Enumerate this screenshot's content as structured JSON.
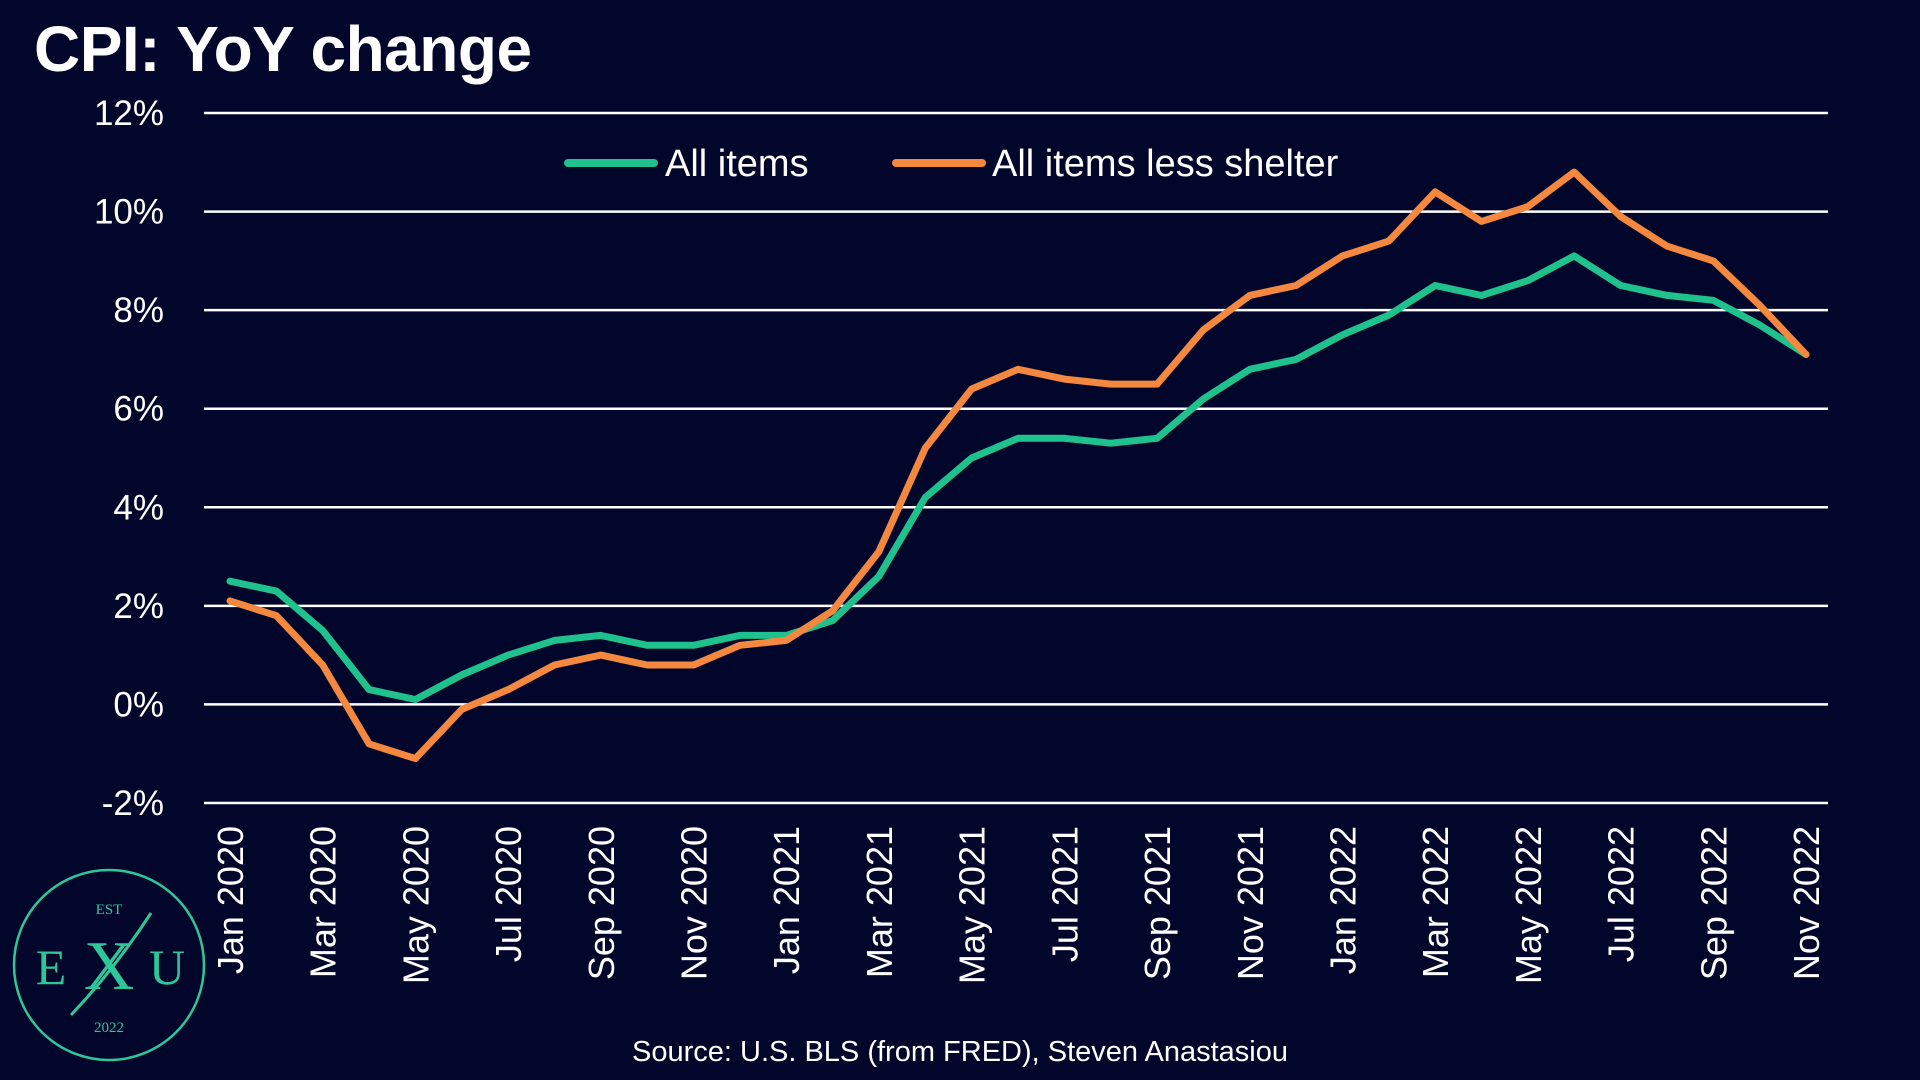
{
  "title": "CPI: YoY change",
  "source": "Source: U.S. BLS (from FRED), Steven Anastasiou",
  "logo": {
    "top": "EST",
    "left": "E",
    "center": "X",
    "right": "U",
    "bottom": "2022",
    "color": "#2ec79a"
  },
  "chart_data": {
    "type": "line",
    "title": "CPI: YoY change",
    "xlabel": "",
    "ylabel": "",
    "ylim": [
      -2,
      12
    ],
    "yticks": [
      -2,
      0,
      2,
      4,
      6,
      8,
      10,
      12
    ],
    "ytick_labels": [
      "-2%",
      "0%",
      "2%",
      "4%",
      "6%",
      "8%",
      "10%",
      "12%"
    ],
    "y_unit": "%",
    "grid": "horizontal",
    "legend_position": "top-center",
    "x": [
      "Jan 2020",
      "Feb 2020",
      "Mar 2020",
      "Apr 2020",
      "May 2020",
      "Jun 2020",
      "Jul 2020",
      "Aug 2020",
      "Sep 2020",
      "Oct 2020",
      "Nov 2020",
      "Dec 2020",
      "Jan 2021",
      "Feb 2021",
      "Mar 2021",
      "Apr 2021",
      "May 2021",
      "Jun 2021",
      "Jul 2021",
      "Aug 2021",
      "Sep 2021",
      "Oct 2021",
      "Nov 2021",
      "Dec 2021",
      "Jan 2022",
      "Feb 2022",
      "Mar 2022",
      "Apr 2022",
      "May 2022",
      "Jun 2022",
      "Jul 2022",
      "Aug 2022",
      "Sep 2022",
      "Oct 2022",
      "Nov 2022"
    ],
    "xtick_labels": [
      "Jan 2020",
      "Mar 2020",
      "May 2020",
      "Jul 2020",
      "Sep 2020",
      "Nov 2020",
      "Jan 2021",
      "Mar 2021",
      "May 2021",
      "Jul 2021",
      "Sep 2021",
      "Nov 2021",
      "Jan 2022",
      "Mar 2022",
      "May 2022",
      "Jul 2022",
      "Sep 2022",
      "Nov 2022"
    ],
    "series": [
      {
        "name": "All items",
        "color": "#1fc18c",
        "values": [
          2.5,
          2.3,
          1.5,
          0.3,
          0.1,
          0.6,
          1.0,
          1.3,
          1.4,
          1.2,
          1.2,
          1.4,
          1.4,
          1.7,
          2.6,
          4.2,
          5.0,
          5.4,
          5.4,
          5.3,
          5.4,
          6.2,
          6.8,
          7.0,
          7.5,
          7.9,
          8.5,
          8.3,
          8.6,
          9.1,
          8.5,
          8.3,
          8.2,
          7.7,
          7.1
        ]
      },
      {
        "name": "All items less shelter",
        "color": "#f5883f",
        "values": [
          2.1,
          1.8,
          0.8,
          -0.8,
          -1.1,
          -0.1,
          0.3,
          0.8,
          1.0,
          0.8,
          0.8,
          1.2,
          1.3,
          1.9,
          3.1,
          5.2,
          6.4,
          6.8,
          6.6,
          6.5,
          6.5,
          7.6,
          8.3,
          8.5,
          9.1,
          9.4,
          10.4,
          9.8,
          10.1,
          10.8,
          9.9,
          9.3,
          9.0,
          8.1,
          7.1
        ]
      }
    ]
  }
}
